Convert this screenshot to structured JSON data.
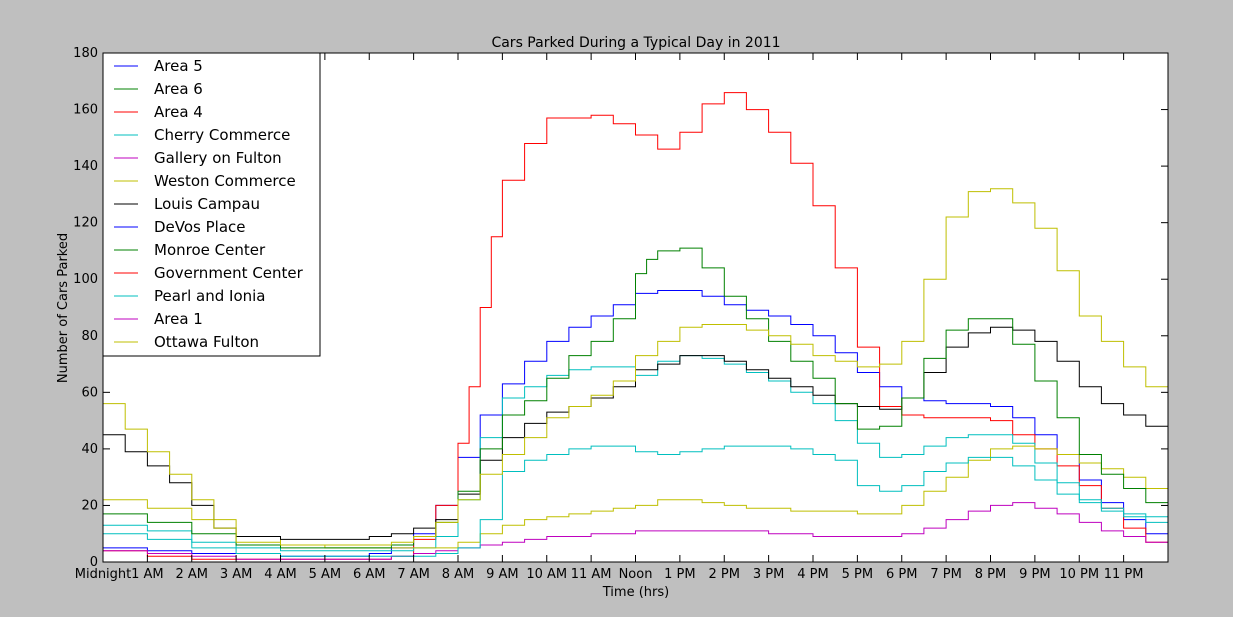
{
  "chart_data": {
    "type": "line",
    "title": "Cars Parked During a Typical Day in 2011",
    "xlabel": "Time (hrs)",
    "ylabel": "Number of Cars Parked",
    "xlim": [
      0,
      24
    ],
    "ylim": [
      0,
      180
    ],
    "grid": false,
    "legend_position": "top-left",
    "yticks": [
      0,
      20,
      40,
      60,
      80,
      100,
      120,
      140,
      160,
      180
    ],
    "xticks": [
      {
        "x": 0,
        "label": "Midnight"
      },
      {
        "x": 1,
        "label": "1 AM"
      },
      {
        "x": 2,
        "label": "2 AM"
      },
      {
        "x": 3,
        "label": "3 AM"
      },
      {
        "x": 4,
        "label": "4 AM"
      },
      {
        "x": 5,
        "label": "5 AM"
      },
      {
        "x": 6,
        "label": "6 AM"
      },
      {
        "x": 7,
        "label": "7 AM"
      },
      {
        "x": 8,
        "label": "8 AM"
      },
      {
        "x": 9,
        "label": "9 AM"
      },
      {
        "x": 10,
        "label": "10 AM"
      },
      {
        "x": 11,
        "label": "11 AM"
      },
      {
        "x": 12,
        "label": "Noon"
      },
      {
        "x": 13,
        "label": "1 PM"
      },
      {
        "x": 14,
        "label": "2 PM"
      },
      {
        "x": 15,
        "label": "3 PM"
      },
      {
        "x": 16,
        "label": "4 PM"
      },
      {
        "x": 17,
        "label": "5 PM"
      },
      {
        "x": 18,
        "label": "6 PM"
      },
      {
        "x": 19,
        "label": "7 PM"
      },
      {
        "x": 20,
        "label": "8 PM"
      },
      {
        "x": 21,
        "label": "9 PM"
      },
      {
        "x": 22,
        "label": "10 PM"
      },
      {
        "x": 23,
        "label": "11 PM"
      }
    ],
    "series": [
      {
        "name": "Area 5",
        "color": "#0000ff",
        "x": [
          0,
          1,
          2,
          3,
          4,
          5,
          6,
          6.5,
          7,
          7.5,
          8,
          8.5,
          9,
          9.5,
          10,
          10.5,
          11,
          11.5,
          12,
          12.5,
          13,
          13.5,
          14,
          14.5,
          15,
          15.5,
          16,
          16.5,
          17,
          17.5,
          18,
          18.5,
          19,
          19.5,
          20,
          20.5,
          21,
          21.5,
          22,
          22.5,
          23,
          23.5,
          24
        ],
        "y": [
          5,
          4,
          3,
          3,
          2,
          2,
          3,
          5,
          10,
          20,
          37,
          52,
          63,
          71,
          78,
          83,
          87,
          91,
          95,
          96,
          96,
          94,
          91,
          89,
          87,
          84,
          80,
          74,
          67,
          62,
          58,
          57,
          56,
          56,
          55,
          51,
          45,
          38,
          29,
          21,
          15,
          10,
          7
        ]
      },
      {
        "name": "Area 6",
        "color": "#008000",
        "x": [
          0,
          1,
          2,
          3,
          4,
          5,
          6,
          6.5,
          7,
          7.5,
          8,
          8.5,
          9,
          9.5,
          10,
          10.5,
          11,
          11.5,
          12,
          12.5,
          13,
          13.5,
          14,
          14.5,
          15,
          15.5,
          16,
          16.5,
          17,
          17.5,
          18,
          18.5,
          19,
          19.5,
          20,
          20.5,
          21,
          21.5,
          22,
          22.5,
          23,
          23.5,
          24
        ],
        "y": [
          0,
          0,
          0,
          0,
          0,
          0,
          0,
          0,
          0,
          0,
          0,
          0,
          0,
          0,
          0,
          0,
          0,
          0,
          0,
          0,
          0,
          0,
          0,
          0,
          0,
          0,
          0,
          0,
          0,
          0,
          0,
          0,
          0,
          0,
          0,
          0,
          0,
          0,
          0,
          0,
          0,
          0,
          0
        ]
      },
      {
        "name": "Area 4",
        "color": "#ff0000",
        "x": [
          0,
          1,
          2,
          3,
          4,
          5,
          6,
          6.5,
          7,
          7.5,
          8,
          8.25,
          8.5,
          8.75,
          9,
          9.5,
          10,
          10.5,
          11,
          11.5,
          12,
          12.5,
          13,
          13.5,
          14,
          14.5,
          15,
          15.5,
          16,
          16.5,
          17,
          17.5,
          18,
          18.5,
          19,
          19.5,
          20,
          20.5,
          21,
          21.5,
          22,
          22.5,
          23,
          23.5,
          24
        ],
        "y": [
          4,
          2,
          1,
          1,
          1,
          1,
          1,
          2,
          8,
          20,
          42,
          62,
          90,
          115,
          135,
          148,
          157,
          157,
          158,
          155,
          151,
          146,
          152,
          162,
          166,
          160,
          152,
          141,
          126,
          104,
          76,
          55,
          52,
          51,
          51,
          51,
          50,
          45,
          40,
          34,
          27,
          19,
          12,
          7,
          5
        ]
      },
      {
        "name": "Cherry Commerce",
        "color": "#00bfbf",
        "x": [
          0,
          1,
          2,
          3,
          4,
          5,
          6,
          6.5,
          7,
          7.5,
          8,
          8.5,
          9,
          9.5,
          10,
          10.5,
          11,
          11.5,
          12,
          12.5,
          13,
          13.5,
          14,
          14.5,
          15,
          15.5,
          16,
          16.5,
          17,
          17.5,
          18,
          18.5,
          19,
          19.5,
          20,
          20.5,
          21,
          21.5,
          22,
          22.5,
          23,
          23.5,
          24
        ],
        "y": [
          13,
          11,
          7,
          5,
          4,
          4,
          4,
          4,
          5,
          9,
          22,
          44,
          58,
          62,
          66,
          68,
          69,
          69,
          66,
          71,
          73,
          72,
          70,
          67,
          64,
          60,
          56,
          50,
          42,
          37,
          38,
          41,
          44,
          45,
          45,
          42,
          35,
          28,
          22,
          19,
          17,
          16,
          14
        ]
      },
      {
        "name": "Gallery on Fulton",
        "color": "#bf00bf",
        "x": [
          0,
          1,
          2,
          3,
          4,
          5,
          6,
          6.5,
          7,
          7.5,
          8,
          8.5,
          9,
          9.5,
          10,
          10.5,
          11,
          11.5,
          12,
          12.5,
          13,
          13.5,
          14,
          14.5,
          15,
          15.5,
          16,
          16.5,
          17,
          17.5,
          18,
          18.5,
          19,
          19.5,
          20,
          20.5,
          21,
          21.5,
          22,
          22.5,
          23,
          23.5,
          24
        ],
        "y": [
          4,
          3,
          2,
          1,
          1,
          1,
          1,
          2,
          3,
          4,
          5,
          6,
          7,
          8,
          9,
          9,
          10,
          10,
          11,
          11,
          11,
          11,
          11,
          11,
          10,
          10,
          9,
          9,
          9,
          9,
          10,
          12,
          15,
          18,
          20,
          21,
          19,
          17,
          14,
          11,
          9,
          7,
          5
        ]
      },
      {
        "name": "Weston Commerce",
        "color": "#bfbf00",
        "x": [
          0,
          1,
          2,
          3,
          4,
          5,
          6,
          6.5,
          7,
          7.5,
          8,
          8.5,
          9,
          9.5,
          10,
          10.5,
          11,
          11.5,
          12,
          12.5,
          13,
          13.5,
          14,
          14.5,
          15,
          15.5,
          16,
          16.5,
          17,
          17.5,
          18,
          18.5,
          19,
          19.5,
          20,
          20.5,
          21,
          21.5,
          22,
          22.5,
          23,
          23.5,
          24
        ],
        "y": [
          22,
          19,
          15,
          9,
          6,
          5,
          5,
          5,
          5,
          5,
          7,
          10,
          13,
          15,
          16,
          17,
          18,
          19,
          20,
          22,
          22,
          21,
          20,
          19,
          19,
          18,
          18,
          18,
          17,
          17,
          20,
          25,
          30,
          36,
          40,
          41,
          40,
          38,
          35,
          33,
          30,
          26,
          23
        ]
      },
      {
        "name": "Louis Campau",
        "color": "#000000",
        "x": [
          0,
          0.5,
          1,
          1.5,
          2,
          2.5,
          3,
          4,
          5,
          6,
          6.5,
          7,
          7.5,
          8,
          8.5,
          9,
          9.5,
          10,
          10.5,
          11,
          11.5,
          12,
          12.5,
          13,
          13.5,
          14,
          14.5,
          15,
          15.5,
          16,
          16.5,
          17,
          17.5,
          18,
          18.5,
          19,
          19.5,
          20,
          20.5,
          21,
          21.5,
          22,
          22.5,
          23,
          23.5,
          24
        ],
        "y": [
          45,
          39,
          34,
          28,
          20,
          12,
          9,
          8,
          8,
          9,
          10,
          12,
          15,
          24,
          36,
          44,
          49,
          53,
          55,
          58,
          62,
          68,
          70,
          73,
          73,
          71,
          68,
          65,
          62,
          59,
          56,
          55,
          54,
          58,
          67,
          76,
          81,
          83,
          82,
          78,
          71,
          62,
          56,
          52,
          48,
          46
        ]
      },
      {
        "name": "DeVos Place",
        "color": "#0000ff",
        "x": [
          0,
          1,
          2,
          3,
          4,
          5,
          6,
          7,
          8,
          9,
          10,
          11,
          12,
          13,
          14,
          15,
          16,
          17,
          18,
          19,
          20,
          21,
          22,
          23,
          24
        ],
        "y": [
          0,
          0,
          0,
          0,
          0,
          0,
          0,
          0,
          0,
          0,
          0,
          0,
          0,
          0,
          0,
          0,
          0,
          0,
          0,
          0,
          0,
          0,
          0,
          0,
          0
        ]
      },
      {
        "name": "Monroe Center",
        "color": "#008000",
        "x": [
          0,
          1,
          2,
          3,
          4,
          5,
          6,
          6.5,
          7,
          7.5,
          8,
          8.5,
          9,
          9.5,
          10,
          10.5,
          11,
          11.5,
          12,
          12.25,
          12.5,
          13,
          13.5,
          14,
          14.5,
          15,
          15.5,
          16,
          16.5,
          17,
          17.5,
          18,
          18.5,
          19,
          19.5,
          20,
          20.5,
          21,
          21.5,
          22,
          22.5,
          23,
          23.5,
          24
        ],
        "y": [
          17,
          14,
          10,
          6,
          5,
          5,
          5,
          6,
          9,
          14,
          25,
          40,
          52,
          57,
          65,
          73,
          78,
          86,
          102,
          107,
          110,
          111,
          104,
          94,
          86,
          78,
          71,
          65,
          56,
          47,
          48,
          58,
          72,
          82,
          86,
          86,
          77,
          64,
          51,
          38,
          31,
          26,
          21,
          17
        ]
      },
      {
        "name": "Government Center",
        "color": "#ff0000",
        "x": [
          0,
          1,
          2,
          3,
          4,
          5,
          6,
          7,
          8,
          9,
          10,
          11,
          12,
          13,
          14,
          15,
          16,
          17,
          18,
          19,
          20,
          21,
          22,
          23,
          24
        ],
        "y": [
          0,
          0,
          0,
          0,
          0,
          0,
          0,
          0,
          0,
          0,
          0,
          0,
          0,
          0,
          0,
          0,
          0,
          0,
          0,
          0,
          0,
          0,
          0,
          0,
          0
        ]
      },
      {
        "name": "Pearl and Ionia",
        "color": "#00bfbf",
        "x": [
          0,
          1,
          2,
          3,
          4,
          5,
          6,
          6.5,
          7,
          7.5,
          8,
          8.5,
          9,
          9.5,
          10,
          10.5,
          11,
          11.5,
          12,
          12.5,
          13,
          13.5,
          14,
          14.5,
          15,
          15.5,
          16,
          16.5,
          17,
          17.5,
          18,
          18.5,
          19,
          19.5,
          20,
          20.5,
          21,
          21.5,
          22,
          22.5,
          23,
          23.5,
          24
        ],
        "y": [
          10,
          8,
          5,
          3,
          2,
          2,
          2,
          2,
          2,
          3,
          5,
          15,
          32,
          36,
          38,
          40,
          41,
          41,
          39,
          38,
          39,
          40,
          41,
          41,
          41,
          40,
          38,
          36,
          27,
          25,
          27,
          32,
          35,
          37,
          37,
          34,
          29,
          24,
          21,
          18,
          16,
          14,
          12
        ]
      },
      {
        "name": "Area 1",
        "color": "#bf00bf",
        "x": [
          0,
          1,
          2,
          3,
          4,
          5,
          6,
          7,
          8,
          9,
          10,
          11,
          12,
          13,
          14,
          15,
          16,
          17,
          18,
          19,
          20,
          21,
          22,
          23,
          24
        ],
        "y": [
          0,
          0,
          0,
          0,
          0,
          0,
          0,
          0,
          0,
          0,
          0,
          0,
          0,
          0,
          0,
          0,
          0,
          0,
          0,
          0,
          0,
          0,
          0,
          0,
          0
        ]
      },
      {
        "name": "Ottawa Fulton",
        "color": "#bfbf00",
        "x": [
          0,
          0.5,
          1,
          1.5,
          2,
          2.5,
          3,
          4,
          5,
          6,
          6.5,
          7,
          7.5,
          8,
          8.5,
          9,
          9.5,
          10,
          10.5,
          11,
          11.5,
          12,
          12.5,
          13,
          13.5,
          14,
          14.5,
          15,
          15.5,
          16,
          16.5,
          17,
          17.5,
          18,
          18.5,
          19,
          19.5,
          20,
          20.5,
          21,
          21.5,
          22,
          22.5,
          23,
          23.5,
          24
        ],
        "y": [
          56,
          47,
          39,
          31,
          22,
          12,
          7,
          6,
          6,
          6,
          7,
          9,
          14,
          22,
          31,
          38,
          44,
          51,
          55,
          59,
          64,
          73,
          78,
          83,
          84,
          84,
          82,
          80,
          77,
          73,
          71,
          69,
          70,
          78,
          100,
          122,
          131,
          132,
          127,
          118,
          103,
          87,
          78,
          69,
          62,
          56
        ]
      }
    ]
  }
}
